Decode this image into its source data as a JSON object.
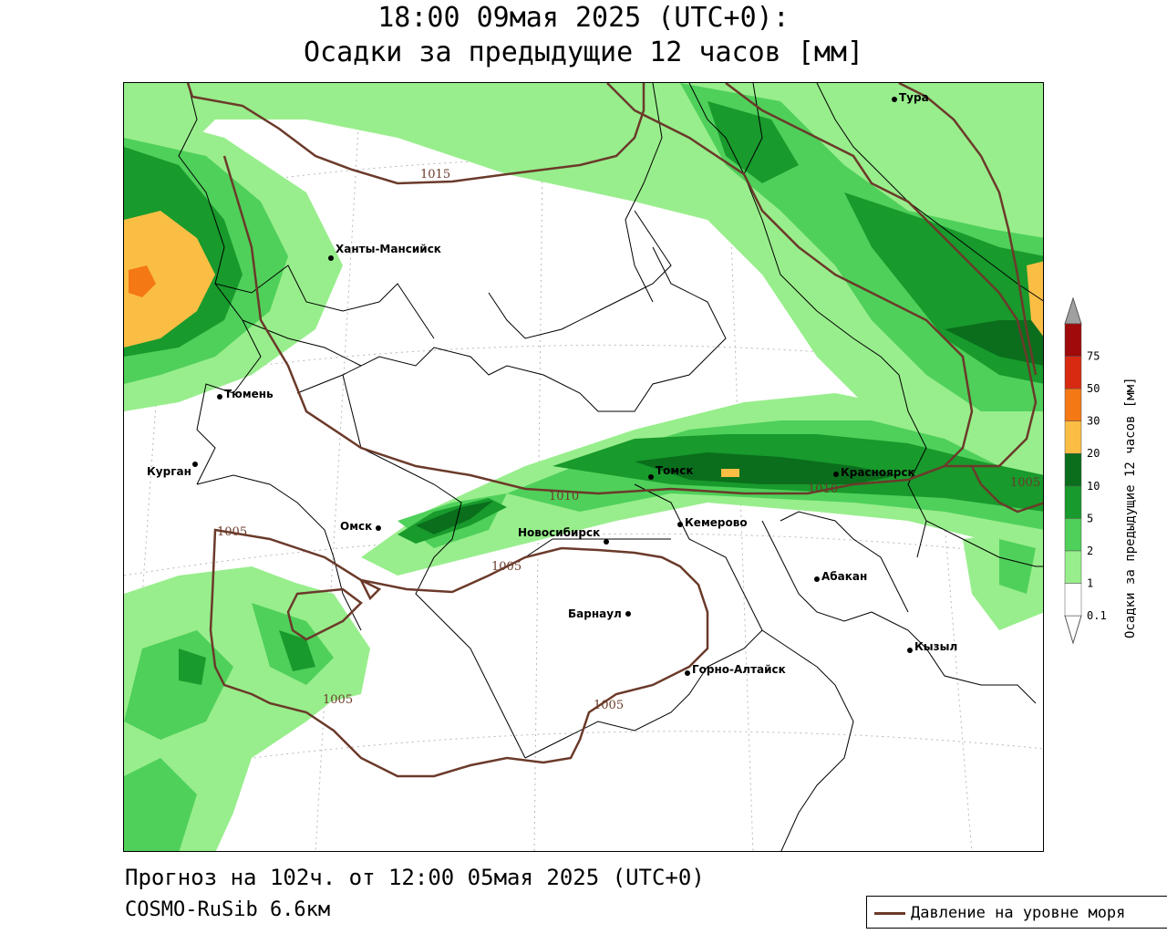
{
  "title": {
    "line1": "18:00 09мая 2025 (UTC+0):",
    "line2": "Осадки за предыдущие 12 часов [мм]"
  },
  "footer": {
    "forecast": "Прогноз на 102ч. от 12:00 05мая 2025 (UTC+0)",
    "model": "COSMO-RuSib 6.6км"
  },
  "colorbar": {
    "title": "Осадки за предыдущие 12 часов [мм]",
    "levels": [
      {
        "label": "0.1",
        "color": "#ffffff"
      },
      {
        "label": "1",
        "color": "#98ee8c"
      },
      {
        "label": "2",
        "color": "#4fd05a"
      },
      {
        "label": "5",
        "color": "#189a2c"
      },
      {
        "label": "10",
        "color": "#0a6e1c"
      },
      {
        "label": "20",
        "color": "#fbbe44"
      },
      {
        "label": "30",
        "color": "#f47814"
      },
      {
        "label": "50",
        "color": "#d82a12"
      },
      {
        "label": "75",
        "color": "#a00a0a"
      }
    ],
    "top_color": "#a0a0a0"
  },
  "cities": [
    {
      "name": "Тура"
    },
    {
      "name": "Ханты-Мансийск"
    },
    {
      "name": "Тюмень"
    },
    {
      "name": "Курган"
    },
    {
      "name": "Омск"
    },
    {
      "name": "Новосибирск"
    },
    {
      "name": "Томск"
    },
    {
      "name": "Красноярск"
    },
    {
      "name": "Кемерово"
    },
    {
      "name": "Барнаул"
    },
    {
      "name": "Абакан"
    },
    {
      "name": "Горно-Алтайск"
    },
    {
      "name": "Кызыл"
    }
  ],
  "isobars": [
    {
      "label": "1015"
    },
    {
      "label": "1010"
    },
    {
      "label": "1010"
    },
    {
      "label": "1005"
    },
    {
      "label": "1005"
    },
    {
      "label": "1005"
    },
    {
      "label": "1005"
    },
    {
      "label": "1005"
    }
  ],
  "legend": {
    "pressure_label": "Давление на уровне моря"
  },
  "colors": {
    "isobar": "#6b3a2a",
    "boundary": "#000000",
    "light_green": "#98ee8c",
    "mid_green": "#4fd05a",
    "dark_green": "#189a2c",
    "darkest_green": "#0a6e1c",
    "orange": "#fbbe44",
    "deep_orange": "#f47814"
  }
}
